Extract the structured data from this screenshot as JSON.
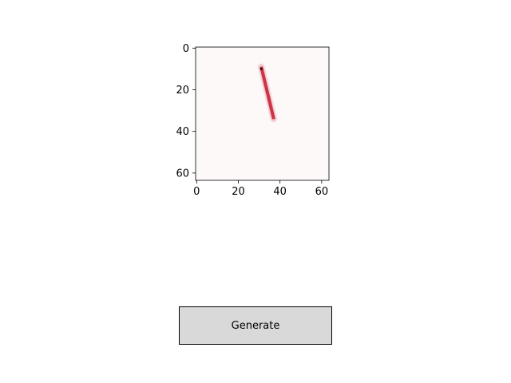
{
  "chart_data": {
    "type": "image",
    "title": "",
    "xlabel": "",
    "ylabel": "",
    "xlim": [
      -0.5,
      63.5
    ],
    "ylim": [
      63.5,
      -0.5
    ],
    "x_ticks": [
      0,
      20,
      40,
      60
    ],
    "y_ticks": [
      0,
      20,
      40,
      60
    ],
    "x_tick_labels": [
      "0",
      "20",
      "40",
      "60"
    ],
    "y_tick_labels": [
      "0",
      "20",
      "40",
      "60"
    ],
    "background_color": "#fdf9f9",
    "stroke": {
      "color": "#cc3344",
      "start": [
        31,
        9
      ],
      "end": [
        37,
        34
      ]
    },
    "marker": {
      "color": "#111111",
      "point": [
        31,
        10
      ]
    }
  },
  "controls": {
    "generate_label": "Generate"
  }
}
